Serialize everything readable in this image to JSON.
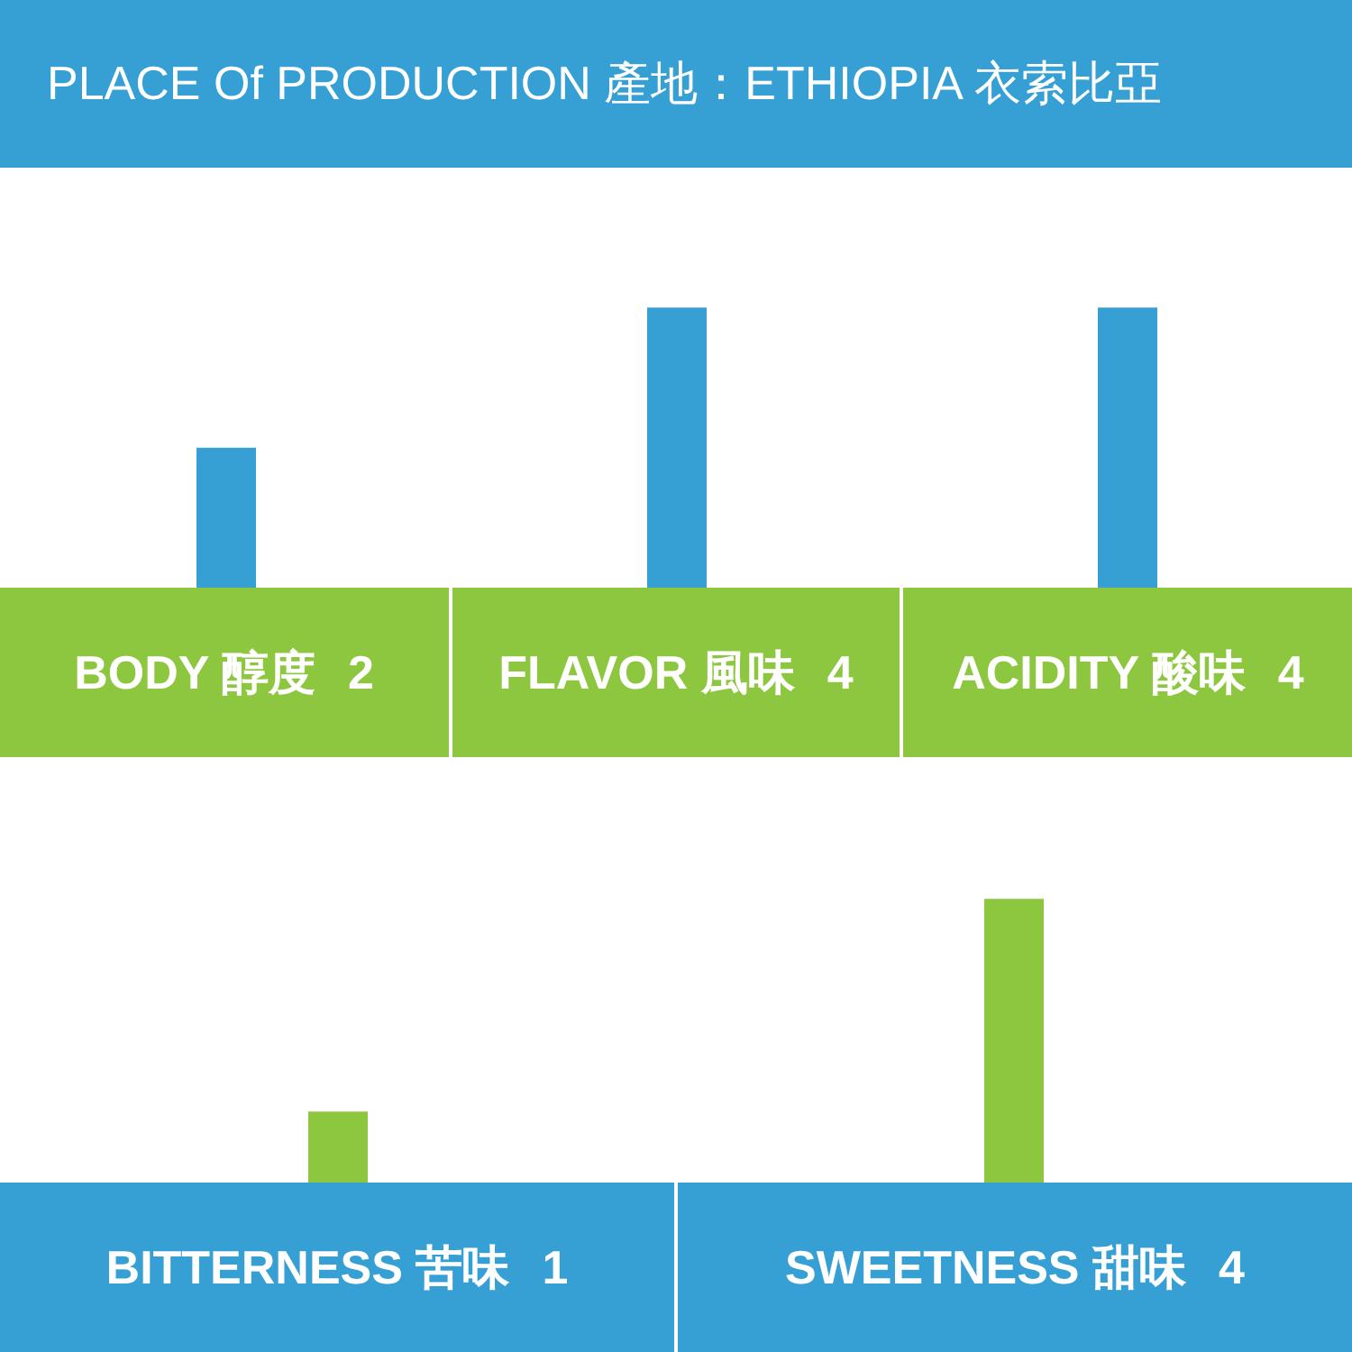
{
  "chart_data": [
    {
      "type": "bar",
      "title": "PLACE Of PRODUCTION 產地：ETHIOPIA 衣索比亞",
      "categories": [
        "BODY 醇度",
        "FLAVOR 風味",
        "ACIDITY 酸味"
      ],
      "values": [
        2,
        4,
        4
      ],
      "color": "#36a0d4",
      "tick_labels": false,
      "data_labels": true,
      "grid": false,
      "legend": false
    },
    {
      "type": "bar",
      "categories": [
        "BITTERNESS 苦味",
        "SWEETNESS 甜味"
      ],
      "values": [
        1,
        4
      ],
      "color": "#8dc63f",
      "tick_labels": false,
      "data_labels": true,
      "grid": false,
      "legend": false
    }
  ]
}
